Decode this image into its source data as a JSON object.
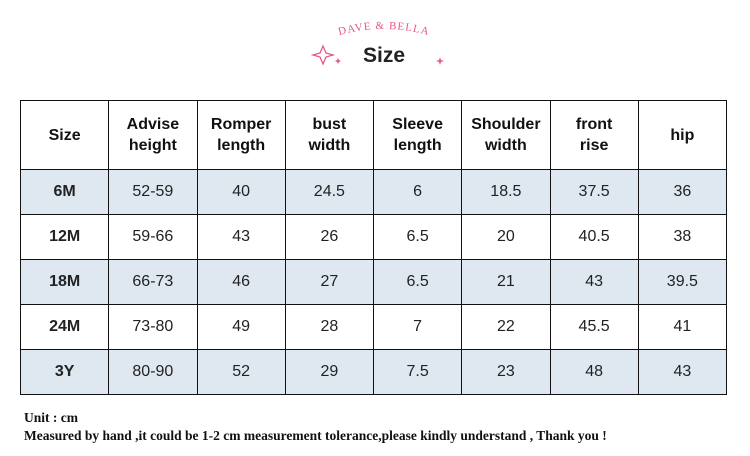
{
  "header": {
    "brand": "DAVE & BELLA",
    "title": "Size"
  },
  "table": {
    "columns": [
      "Size",
      "Advise height",
      "Romper length",
      "bust width",
      "Sleeve length",
      "Shoulder width",
      "front rise",
      "hip"
    ],
    "rows": [
      [
        "6M",
        "52-59",
        40,
        24.5,
        6,
        18.5,
        37.5,
        36
      ],
      [
        "12M",
        "59-66",
        43,
        26,
        6.5,
        20,
        40.5,
        38
      ],
      [
        "18M",
        "66-73",
        46,
        27,
        6.5,
        21,
        43,
        39.5
      ],
      [
        "24M",
        "73-80",
        49,
        28,
        7,
        22,
        45.5,
        41
      ],
      [
        "3Y",
        "80-90",
        52,
        29,
        7.5,
        23,
        48,
        43
      ]
    ]
  },
  "footer": {
    "unit": "Unit : cm",
    "note": "Measured by hand ,it could be 1-2 cm measurement tolerance,please kindly understand , Thank you !"
  }
}
